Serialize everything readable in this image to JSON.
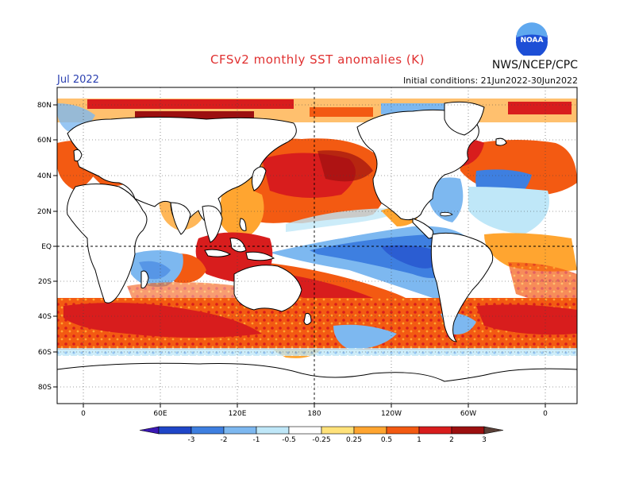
{
  "header": {
    "title": "CFSv2 monthly SST anomalies (K)",
    "agency": "NWS/NCEP/CPC",
    "logo_text": "NOAA",
    "forecast_month": "Jul 2022",
    "initial_conditions": "Initial conditions: 21Jun2022-30Jun2022"
  },
  "axes": {
    "lat_labels": [
      "80N",
      "60N",
      "40N",
      "20N",
      "EQ",
      "20S",
      "40S",
      "60S",
      "80S"
    ],
    "lon_labels": [
      "0",
      "60E",
      "120E",
      "180",
      "120W",
      "60W",
      "0"
    ]
  },
  "colorbar": {
    "labels": [
      "-3",
      "-2",
      "-1",
      "-0.5",
      "-0.25",
      "0.25",
      "0.5",
      "1",
      "2",
      "3"
    ],
    "colors": [
      "#3b18b4",
      "#1f46c8",
      "#3e7fe0",
      "#7db8f0",
      "#bfe7f8",
      "#ffffff",
      "#ffe27a",
      "#ffa530",
      "#f35a12",
      "#d81d1d",
      "#9c1010",
      "#5a4038"
    ]
  },
  "map": {
    "ocean_color": "#ffffff",
    "land_outline_color": "#000000",
    "grid": "dotted"
  }
}
